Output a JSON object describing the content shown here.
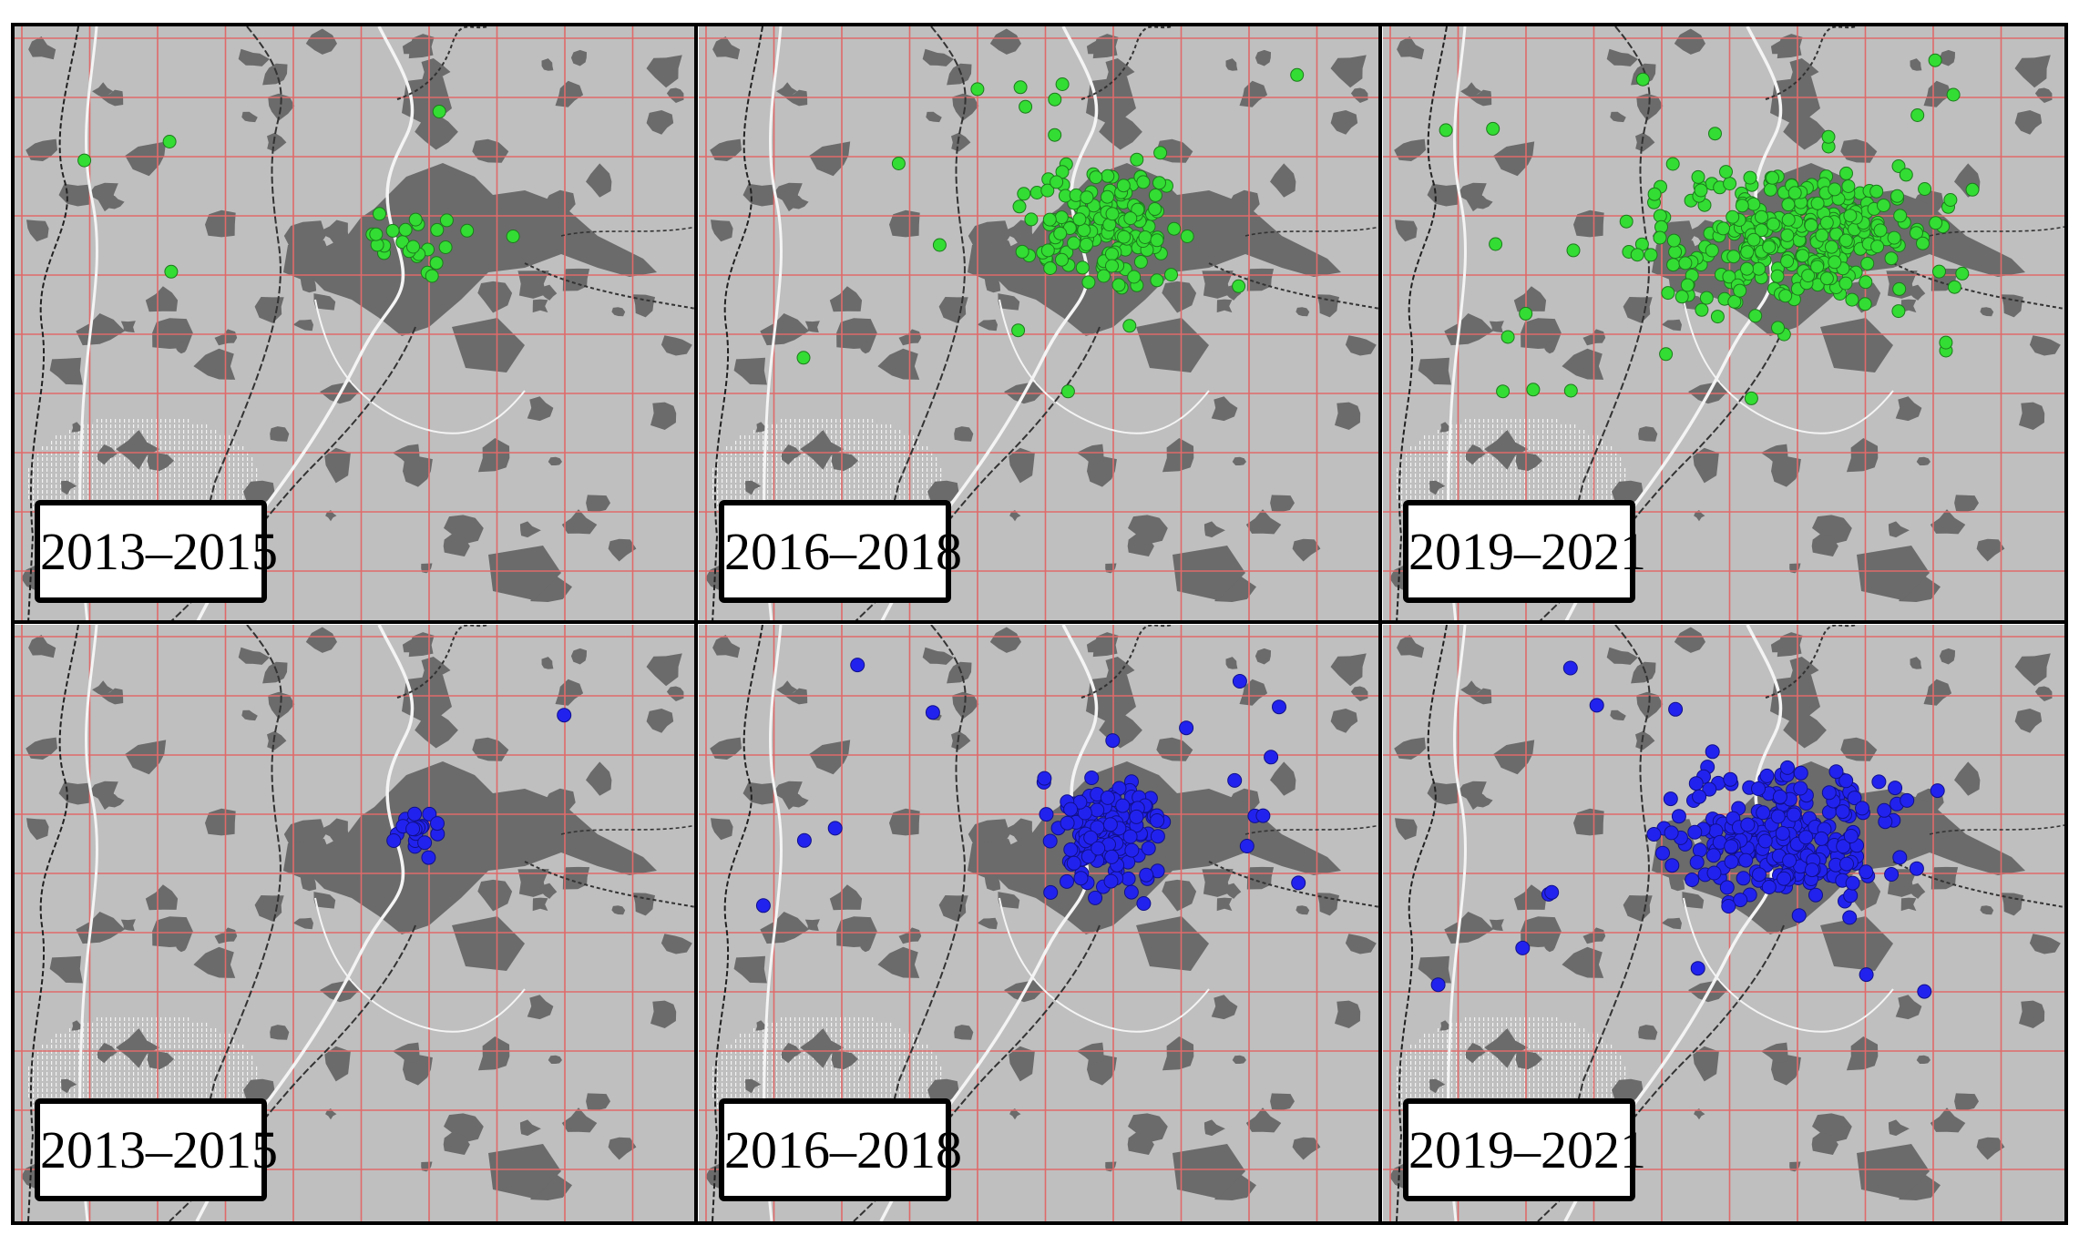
{
  "colors": {
    "background_land": "#bfbfbf",
    "urban_area": "#6b6b6b",
    "grid_lines": "#e06a6a",
    "rows": [
      "#33dd33",
      "#2222ee"
    ]
  },
  "icons": [
    "urban-area-shape",
    "river-line",
    "railway-line",
    "border-line",
    "occurrence-dot"
  ],
  "rows": [
    {
      "color": "#33dd33",
      "panels": [
        {
          "label": "2013–2015",
          "n_points": 28
        },
        {
          "label": "2016–2018",
          "n_points": 160
        },
        {
          "label": "2019–2021",
          "n_points": 320
        }
      ]
    },
    {
      "color": "#2222ee",
      "panels": [
        {
          "label": "2013–2015",
          "n_points": 20
        },
        {
          "label": "2016–2018",
          "n_points": 150
        },
        {
          "label": "2019–2021",
          "n_points": 260
        }
      ]
    }
  ]
}
